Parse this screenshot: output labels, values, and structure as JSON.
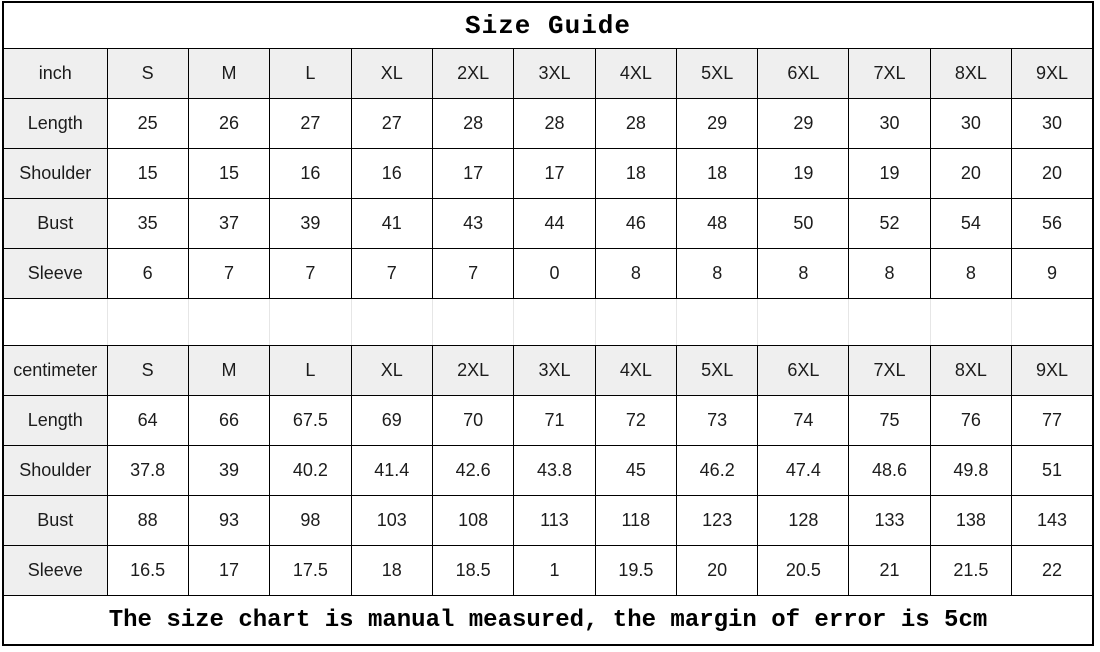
{
  "page": {
    "title": "Size Guide",
    "footer_note": "The size chart is manual measured, the margin of error is 5cm"
  },
  "sizes": [
    "S",
    "M",
    "L",
    "XL",
    "2XL",
    "3XL",
    "4XL",
    "5XL",
    "6XL",
    "7XL",
    "8XL",
    "9XL"
  ],
  "tables": [
    {
      "unit_label": "inch",
      "rows": [
        {
          "label": "Length",
          "values": [
            "25",
            "26",
            "27",
            "27",
            "28",
            "28",
            "28",
            "29",
            "29",
            "30",
            "30",
            "30"
          ]
        },
        {
          "label": "Shoulder",
          "values": [
            "15",
            "15",
            "16",
            "16",
            "17",
            "17",
            "18",
            "18",
            "19",
            "19",
            "20",
            "20"
          ]
        },
        {
          "label": "Bust",
          "values": [
            "35",
            "37",
            "39",
            "41",
            "43",
            "44",
            "46",
            "48",
            "50",
            "52",
            "54",
            "56"
          ]
        },
        {
          "label": "Sleeve",
          "values": [
            "6",
            "7",
            "7",
            "7",
            "7",
            "0",
            "8",
            "8",
            "8",
            "8",
            "8",
            "9"
          ]
        }
      ]
    },
    {
      "unit_label": "centimeter",
      "rows": [
        {
          "label": "Length",
          "values": [
            "64",
            "66",
            "67.5",
            "69",
            "70",
            "71",
            "72",
            "73",
            "74",
            "75",
            "76",
            "77"
          ]
        },
        {
          "label": "Shoulder",
          "values": [
            "37.8",
            "39",
            "40.2",
            "41.4",
            "42.6",
            "43.8",
            "45",
            "46.2",
            "47.4",
            "48.6",
            "49.8",
            "51"
          ]
        },
        {
          "label": "Bust",
          "values": [
            "88",
            "93",
            "98",
            "103",
            "108",
            "113",
            "118",
            "123",
            "128",
            "133",
            "138",
            "143"
          ]
        },
        {
          "label": "Sleeve",
          "values": [
            "16.5",
            "17",
            "17.5",
            "18",
            "18.5",
            "1",
            "19.5",
            "20",
            "20.5",
            "21",
            "21.5",
            "22"
          ]
        }
      ]
    }
  ],
  "colors": {
    "border": "#000000",
    "header_bg": "#efefef",
    "separator_line": "#e6e6e6",
    "text": "#1c1c1c"
  }
}
